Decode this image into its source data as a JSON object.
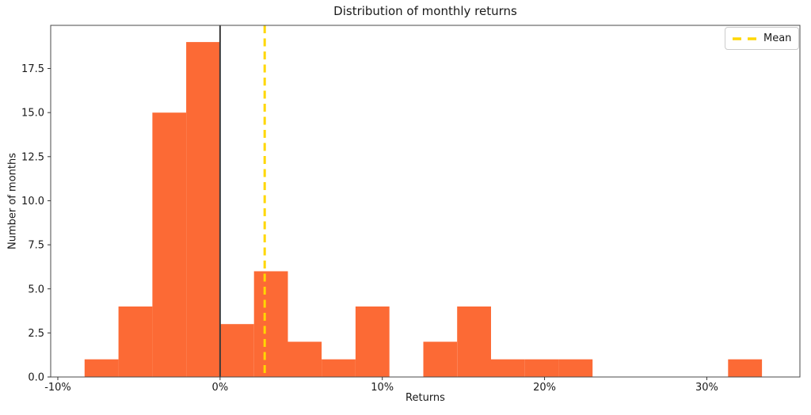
{
  "chart_data": {
    "type": "bar",
    "subtype": "histogram",
    "title": "Distribution of monthly returns",
    "xlabel": "Returns",
    "ylabel": "Number of months",
    "bin_edges_pct": [
      -8.35,
      -6.26,
      -4.17,
      -2.09,
      0.0,
      2.09,
      4.18,
      6.26,
      8.35,
      10.44,
      12.53,
      14.61,
      16.7,
      18.79,
      20.88,
      22.96,
      25.05,
      27.14,
      29.23,
      31.31,
      33.4
    ],
    "counts": [
      1,
      4,
      15,
      19,
      3,
      6,
      2,
      1,
      4,
      0,
      2,
      4,
      1,
      1,
      1,
      0,
      0,
      0,
      0,
      1
    ],
    "mean_pct": 2.75,
    "zero_line_pct": 0,
    "xlim": [
      -10.44,
      35.74
    ],
    "ylim": [
      0,
      19.95
    ],
    "xticks": [
      {
        "value": -10,
        "label": "-10%"
      },
      {
        "value": 0,
        "label": "0%"
      },
      {
        "value": 10,
        "label": "10%"
      },
      {
        "value": 20,
        "label": "20%"
      },
      {
        "value": 30,
        "label": "30%"
      }
    ],
    "yticks": [
      {
        "value": 0,
        "label": "0.0"
      },
      {
        "value": 2.5,
        "label": "2.5"
      },
      {
        "value": 5,
        "label": "5.0"
      },
      {
        "value": 7.5,
        "label": "7.5"
      },
      {
        "value": 10,
        "label": "10.0"
      },
      {
        "value": 12.5,
        "label": "12.5"
      },
      {
        "value": 15,
        "label": "15.0"
      },
      {
        "value": 17.5,
        "label": "17.5"
      }
    ],
    "legend": {
      "label": "Mean",
      "position": "upper right"
    },
    "grid": false,
    "colors": {
      "bar": "#FC6A35",
      "mean_line": "#FFD700",
      "zero_line": "#3a3a3a",
      "spine": "#4a4a4a",
      "tick": "#333333",
      "text": "#1a1a1a",
      "legend_border": "#cccccc",
      "background": "#ffffff"
    }
  }
}
